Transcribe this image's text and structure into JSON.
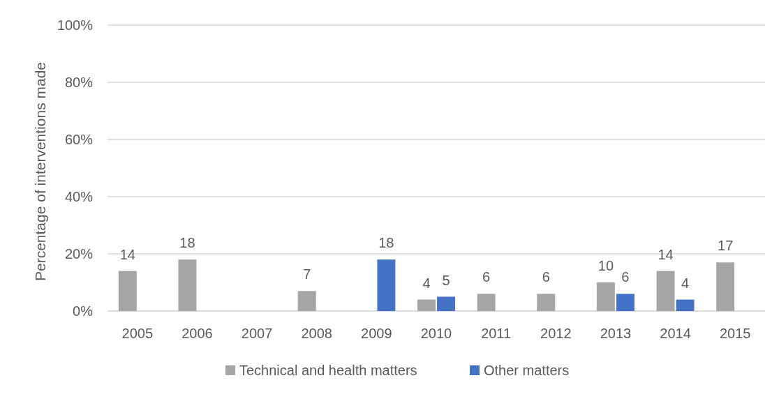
{
  "chart_data": {
    "type": "bar",
    "categories": [
      "2005",
      "2006",
      "2007",
      "2008",
      "2009",
      "2010",
      "2011",
      "2012",
      "2013",
      "2014",
      "2015"
    ],
    "series": [
      {
        "name": "Technical and health matters",
        "color": "#a5a5a5",
        "values": [
          14,
          18,
          null,
          7,
          null,
          4,
          6,
          6,
          10,
          14,
          17
        ]
      },
      {
        "name": "Other matters",
        "color": "#4472c4",
        "values": [
          null,
          null,
          null,
          null,
          18,
          5,
          null,
          null,
          6,
          4,
          null
        ]
      }
    ],
    "ylabel": "Percentage of interventions made",
    "ylim": [
      0,
      100
    ],
    "yticks": [
      {
        "value": 0,
        "label": "0%"
      },
      {
        "value": 20,
        "label": "20%"
      },
      {
        "value": 40,
        "label": "40%"
      },
      {
        "value": 60,
        "label": "60%"
      },
      {
        "value": 80,
        "label": "80%"
      },
      {
        "value": 100,
        "label": "100%"
      }
    ],
    "grid": "y",
    "legend": "bottom",
    "data_labels": true
  }
}
